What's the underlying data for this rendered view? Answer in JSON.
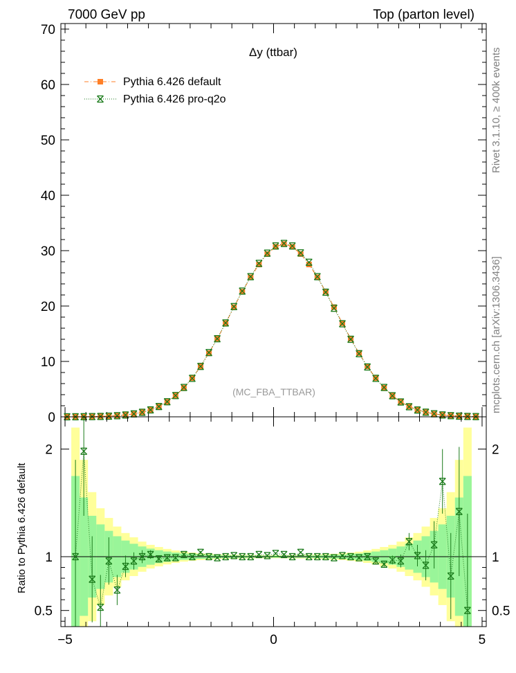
{
  "header": {
    "left": "7000 GeV pp",
    "right": "Top (parton level)"
  },
  "side_labels": {
    "rivet": "Rivet 3.1.10, ≥ 400k events",
    "mcplots": "mcplots.cern.ch [arXiv:1306.3436]"
  },
  "chart_data": [
    {
      "type": "line",
      "panel": "main",
      "title": "Δy (ttbar)",
      "watermark": "(MC_FBA_TTBAR)",
      "xlabel": "",
      "ylabel": "",
      "xlim": [
        -5.1,
        5.1
      ],
      "ylim": [
        0,
        71
      ],
      "yticks": [
        0,
        10,
        20,
        30,
        40,
        50,
        60,
        70
      ],
      "ytick_labels": [
        "0",
        "10",
        "20",
        "30",
        "40",
        "50",
        "60",
        "70"
      ],
      "legend_position": "top-left",
      "x": [
        -4.95,
        -4.75,
        -4.55,
        -4.35,
        -4.15,
        -3.95,
        -3.75,
        -3.55,
        -3.35,
        -3.15,
        -2.95,
        -2.75,
        -2.55,
        -2.35,
        -2.15,
        -1.95,
        -1.75,
        -1.55,
        -1.35,
        -1.15,
        -0.95,
        -0.75,
        -0.55,
        -0.35,
        -0.15,
        0.05,
        0.25,
        0.45,
        0.65,
        0.85,
        1.05,
        1.25,
        1.45,
        1.65,
        1.85,
        2.05,
        2.25,
        2.45,
        2.65,
        2.85,
        3.05,
        3.25,
        3.45,
        3.65,
        3.85,
        4.05,
        4.25,
        4.45,
        4.65,
        4.85
      ],
      "series": [
        {
          "name": "Pythia 6.426 default",
          "color": "#ff7f27",
          "marker": "square",
          "linestyle": "dash-dot",
          "values": [
            0.005,
            0.01,
            0.02,
            0.04,
            0.07,
            0.12,
            0.2,
            0.33,
            0.53,
            0.82,
            1.25,
            1.86,
            2.7,
            3.82,
            5.25,
            7.0,
            9.1,
            11.5,
            14.1,
            16.9,
            19.8,
            22.6,
            25.2,
            27.5,
            29.4,
            30.7,
            31.2,
            30.7,
            29.4,
            27.5,
            25.2,
            22.6,
            19.8,
            16.9,
            14.1,
            11.5,
            9.1,
            7.0,
            5.25,
            3.82,
            2.7,
            1.86,
            1.25,
            0.82,
            0.53,
            0.33,
            0.2,
            0.12,
            0.07,
            0.04
          ]
        },
        {
          "name": "Pythia 6.426 pro-q2o",
          "color": "#1a7a1a",
          "marker": "star",
          "linestyle": "dotted",
          "values": [
            0.005,
            0.01,
            0.02,
            0.04,
            0.07,
            0.12,
            0.2,
            0.33,
            0.53,
            0.82,
            1.25,
            1.86,
            2.72,
            3.84,
            5.3,
            6.95,
            9.1,
            11.6,
            14.1,
            16.95,
            19.9,
            22.7,
            25.3,
            27.7,
            29.55,
            30.85,
            31.3,
            30.85,
            29.6,
            27.9,
            25.3,
            22.5,
            19.6,
            16.8,
            14.0,
            11.4,
            9.0,
            6.95,
            5.3,
            3.8,
            2.68,
            1.82,
            1.23,
            0.84,
            0.55,
            0.34,
            0.21,
            0.12,
            0.07,
            0.04
          ]
        }
      ]
    },
    {
      "type": "line",
      "panel": "ratio",
      "title": "",
      "xlabel": "",
      "ylabel": "Ratio to Pythia 6.426 default",
      "xlim": [
        -5.1,
        5.1
      ],
      "ylim": [
        0.35,
        2.3
      ],
      "xticks": [
        -5,
        0,
        5
      ],
      "xtick_labels": [
        "−5",
        "0",
        "5"
      ],
      "yticks": [
        0.5,
        1,
        2
      ],
      "ytick_labels": [
        "0.5",
        "1",
        "2"
      ],
      "x": [
        -4.75,
        -4.55,
        -4.35,
        -4.15,
        -3.95,
        -3.75,
        -3.55,
        -3.35,
        -3.15,
        -2.95,
        -2.75,
        -2.55,
        -2.35,
        -2.15,
        -1.95,
        -1.75,
        -1.55,
        -1.35,
        -1.15,
        -0.95,
        -0.75,
        -0.55,
        -0.35,
        -0.15,
        0.05,
        0.25,
        0.45,
        0.65,
        0.85,
        1.05,
        1.25,
        1.45,
        1.65,
        1.85,
        2.05,
        2.25,
        2.45,
        2.65,
        2.85,
        3.05,
        3.25,
        3.45,
        3.65,
        3.85,
        4.05,
        4.25,
        4.45,
        4.65
      ],
      "reference_band": {
        "name": "Pythia 6.426 default uncertainty",
        "inner_color": "#99f599",
        "outer_color": "#ffff9a",
        "inner_half_width": [
          0.75,
          0.55,
          0.38,
          0.3,
          0.24,
          0.19,
          0.15,
          0.12,
          0.095,
          0.075,
          0.06,
          0.048,
          0.038,
          0.03,
          0.025,
          0.02,
          0.018,
          0.015,
          0.013,
          0.012,
          0.011,
          0.01,
          0.01,
          0.009,
          0.009,
          0.01,
          0.01,
          0.011,
          0.012,
          0.013,
          0.015,
          0.018,
          0.02,
          0.025,
          0.03,
          0.038,
          0.048,
          0.06,
          0.075,
          0.095,
          0.12,
          0.15,
          0.19,
          0.24,
          0.3,
          0.38,
          0.55,
          0.75
        ],
        "outer_half_width": [
          1.2,
          0.9,
          0.6,
          0.45,
          0.36,
          0.28,
          0.22,
          0.18,
          0.14,
          0.11,
          0.09,
          0.072,
          0.058,
          0.046,
          0.038,
          0.031,
          0.027,
          0.023,
          0.02,
          0.018,
          0.017,
          0.016,
          0.015,
          0.014,
          0.014,
          0.015,
          0.016,
          0.017,
          0.018,
          0.02,
          0.023,
          0.027,
          0.031,
          0.038,
          0.046,
          0.058,
          0.072,
          0.09,
          0.11,
          0.14,
          0.18,
          0.22,
          0.28,
          0.36,
          0.45,
          0.6,
          0.9,
          1.2
        ]
      },
      "series": [
        {
          "name": "Pythia 6.426 pro-q2o",
          "color": "#1a7a1a",
          "marker": "star",
          "values": [
            1.0,
            1.98,
            0.79,
            0.53,
            0.96,
            0.69,
            0.91,
            0.96,
            1.0,
            1.02,
            0.98,
            0.99,
            0.99,
            1.02,
            1.0,
            1.04,
            1.0,
            0.99,
            1.0,
            1.01,
            1.0,
            1.0,
            1.02,
            1.01,
            1.03,
            1.02,
            1.0,
            1.04,
            1.0,
            1.0,
            1.0,
            0.99,
            1.01,
            1.0,
            0.99,
            1.0,
            0.96,
            0.93,
            0.97,
            0.96,
            1.14,
            1.01,
            0.92,
            1.11,
            1.7,
            0.82,
            1.42,
            0.5
          ],
          "errors": [
            0.9,
            0.6,
            0.4,
            0.3,
            0.22,
            0.14,
            0.1,
            0.08,
            0.06,
            0.04,
            0.03,
            0.03,
            0.02,
            0.02,
            0.015,
            0.015,
            0.01,
            0.01,
            0.01,
            0.01,
            0.01,
            0.01,
            0.01,
            0.01,
            0.01,
            0.01,
            0.01,
            0.01,
            0.01,
            0.01,
            0.01,
            0.01,
            0.015,
            0.015,
            0.02,
            0.02,
            0.03,
            0.03,
            0.04,
            0.06,
            0.08,
            0.1,
            0.14,
            0.22,
            0.3,
            0.4,
            0.6,
            0.9
          ]
        }
      ]
    }
  ]
}
